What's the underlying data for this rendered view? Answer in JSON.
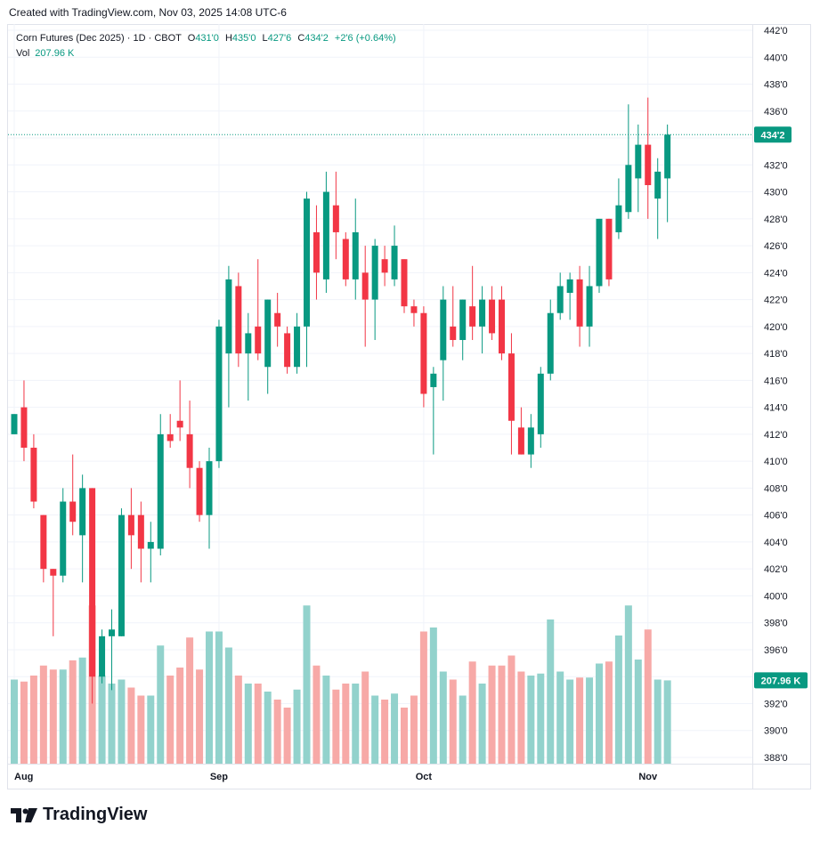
{
  "header": {
    "created_text": "Created with TradingView.com, Nov 03, 2025 14:08 UTC-6"
  },
  "legend": {
    "symbol": "Corn Futures (Dec 2025)",
    "interval": "1D",
    "exchange": "CBOT",
    "dot": "·",
    "open_label": "O",
    "open": "431'0",
    "high_label": "H",
    "high": "435'0",
    "low_label": "L",
    "low": "427'6",
    "close_label": "C",
    "close": "434'2",
    "change": "+2'6 (+0.64%)",
    "vol_label": "Vol",
    "vol_value": "207.96 K"
  },
  "price_badge": "434'2",
  "volume_badge": "207.96 K",
  "brand": "TradingView",
  "colors": {
    "up": "#089981",
    "down": "#f23645",
    "up_volume": "#92d2cc",
    "down_volume": "#f7a9a7",
    "grid": "#f0f3fa"
  },
  "chart_data": {
    "type": "candlestick",
    "title": "Corn Futures (Dec 2025) · 1D · CBOT",
    "price_unit": "cents per bushel (quarter-cent fraction notation)",
    "ylim": [
      387.5,
      442.5
    ],
    "y_ticks": [
      "388'0",
      "390'0",
      "392'0",
      "394'0",
      "396'0",
      "398'0",
      "400'0",
      "402'0",
      "404'0",
      "406'0",
      "408'0",
      "410'0",
      "412'0",
      "414'0",
      "416'0",
      "418'0",
      "420'0",
      "422'0",
      "424'0",
      "426'0",
      "428'0",
      "430'0",
      "432'0",
      "434'0",
      "436'0",
      "438'0",
      "440'0",
      "442'0"
    ],
    "y_tick_values": [
      388,
      390,
      392,
      394,
      396,
      398,
      400,
      402,
      404,
      406,
      408,
      410,
      412,
      414,
      416,
      418,
      420,
      422,
      424,
      426,
      428,
      430,
      432,
      434,
      436,
      438,
      440,
      442
    ],
    "x_labels": [
      {
        "label": "Aug",
        "index": 0
      },
      {
        "label": "Sep",
        "index": 21
      },
      {
        "label": "Oct",
        "index": 42
      },
      {
        "label": "Nov",
        "index": 65
      }
    ],
    "last_price": 434.25,
    "volume_max_k": 400,
    "candles": [
      {
        "o": 412.0,
        "h": 413.5,
        "l": 412.0,
        "c": 413.5,
        "v": 210
      },
      {
        "o": 414.0,
        "h": 416.0,
        "l": 410.0,
        "c": 411.0,
        "v": 205
      },
      {
        "o": 411.0,
        "h": 412.0,
        "l": 406.5,
        "c": 407.0,
        "v": 220
      },
      {
        "o": 406.0,
        "h": 406.0,
        "l": 401.0,
        "c": 402.0,
        "v": 245
      },
      {
        "o": 402.0,
        "h": 402.0,
        "l": 397.0,
        "c": 401.5,
        "v": 235
      },
      {
        "o": 401.5,
        "h": 408.0,
        "l": 401.0,
        "c": 407.0,
        "v": 235
      },
      {
        "o": 407.0,
        "h": 410.5,
        "l": 404.5,
        "c": 405.5,
        "v": 258
      },
      {
        "o": 404.5,
        "h": 409.0,
        "l": 401.0,
        "c": 408.0,
        "v": 265
      },
      {
        "o": 408.0,
        "h": 408.0,
        "l": 392.0,
        "c": 394.0,
        "v": 395
      },
      {
        "o": 394.0,
        "h": 397.5,
        "l": 393.5,
        "c": 397.0,
        "v": 220
      },
      {
        "o": 397.0,
        "h": 399.0,
        "l": 393.0,
        "c": 397.5,
        "v": 200
      },
      {
        "o": 397.0,
        "h": 406.5,
        "l": 397.0,
        "c": 406.0,
        "v": 210
      },
      {
        "o": 406.0,
        "h": 408.0,
        "l": 402.0,
        "c": 404.5,
        "v": 190
      },
      {
        "o": 406.0,
        "h": 407.0,
        "l": 401.0,
        "c": 403.5,
        "v": 170
      },
      {
        "o": 403.5,
        "h": 405.5,
        "l": 401.0,
        "c": 404.0,
        "v": 170
      },
      {
        "o": 403.5,
        "h": 413.5,
        "l": 403.0,
        "c": 412.0,
        "v": 295
      },
      {
        "o": 412.0,
        "h": 413.5,
        "l": 411.0,
        "c": 411.5,
        "v": 220
      },
      {
        "o": 413.0,
        "h": 416.0,
        "l": 411.5,
        "c": 412.5,
        "v": 240
      },
      {
        "o": 412.0,
        "h": 414.5,
        "l": 408.0,
        "c": 409.5,
        "v": 315
      },
      {
        "o": 409.5,
        "h": 410.0,
        "l": 405.5,
        "c": 406.0,
        "v": 235
      },
      {
        "o": 406.0,
        "h": 411.0,
        "l": 403.5,
        "c": 410.0,
        "v": 330
      },
      {
        "o": 410.0,
        "h": 420.5,
        "l": 409.5,
        "c": 420.0,
        "v": 330
      },
      {
        "o": 418.0,
        "h": 424.5,
        "l": 414.0,
        "c": 423.5,
        "v": 290
      },
      {
        "o": 423.0,
        "h": 424.0,
        "l": 417.0,
        "c": 418.0,
        "v": 220
      },
      {
        "o": 418.0,
        "h": 421.0,
        "l": 414.5,
        "c": 419.5,
        "v": 200
      },
      {
        "o": 420.0,
        "h": 425.0,
        "l": 417.5,
        "c": 418.0,
        "v": 200
      },
      {
        "o": 417.0,
        "h": 422.0,
        "l": 415.0,
        "c": 422.0,
        "v": 180
      },
      {
        "o": 421.0,
        "h": 422.5,
        "l": 418.5,
        "c": 420.0,
        "v": 160
      },
      {
        "o": 419.5,
        "h": 420.0,
        "l": 416.5,
        "c": 417.0,
        "v": 140
      },
      {
        "o": 417.0,
        "h": 421.0,
        "l": 416.5,
        "c": 420.0,
        "v": 185
      },
      {
        "o": 420.0,
        "h": 430.0,
        "l": 417.0,
        "c": 429.5,
        "v": 395
      },
      {
        "o": 427.0,
        "h": 429.0,
        "l": 422.0,
        "c": 424.0,
        "v": 245
      },
      {
        "o": 423.5,
        "h": 431.5,
        "l": 422.5,
        "c": 430.0,
        "v": 220
      },
      {
        "o": 429.0,
        "h": 431.5,
        "l": 425.0,
        "c": 427.0,
        "v": 185
      },
      {
        "o": 426.5,
        "h": 427.0,
        "l": 423.0,
        "c": 423.5,
        "v": 200
      },
      {
        "o": 423.5,
        "h": 429.5,
        "l": 422.0,
        "c": 427.0,
        "v": 200
      },
      {
        "o": 424.0,
        "h": 426.0,
        "l": 418.5,
        "c": 422.0,
        "v": 230
      },
      {
        "o": 422.0,
        "h": 426.5,
        "l": 419.0,
        "c": 426.0,
        "v": 170
      },
      {
        "o": 425.0,
        "h": 426.0,
        "l": 423.0,
        "c": 424.0,
        "v": 160
      },
      {
        "o": 423.5,
        "h": 427.5,
        "l": 423.0,
        "c": 426.0,
        "v": 175
      },
      {
        "o": 425.0,
        "h": 425.0,
        "l": 421.0,
        "c": 421.5,
        "v": 140
      },
      {
        "o": 421.5,
        "h": 422.0,
        "l": 420.0,
        "c": 421.0,
        "v": 170
      },
      {
        "o": 421.0,
        "h": 421.5,
        "l": 414.0,
        "c": 415.0,
        "v": 330
      },
      {
        "o": 415.5,
        "h": 417.0,
        "l": 410.5,
        "c": 416.5,
        "v": 340
      },
      {
        "o": 417.5,
        "h": 423.0,
        "l": 414.5,
        "c": 422.0,
        "v": 230
      },
      {
        "o": 420.0,
        "h": 423.0,
        "l": 418.5,
        "c": 419.0,
        "v": 210
      },
      {
        "o": 419.0,
        "h": 422.0,
        "l": 417.5,
        "c": 422.0,
        "v": 170
      },
      {
        "o": 421.5,
        "h": 424.5,
        "l": 419.0,
        "c": 420.0,
        "v": 255
      },
      {
        "o": 420.0,
        "h": 423.0,
        "l": 418.0,
        "c": 422.0,
        "v": 200
      },
      {
        "o": 422.0,
        "h": 423.0,
        "l": 419.0,
        "c": 419.5,
        "v": 245
      },
      {
        "o": 422.0,
        "h": 423.0,
        "l": 417.5,
        "c": 418.0,
        "v": 245
      },
      {
        "o": 418.0,
        "h": 419.5,
        "l": 410.5,
        "c": 413.0,
        "v": 270
      },
      {
        "o": 412.5,
        "h": 414.0,
        "l": 410.5,
        "c": 410.5,
        "v": 230
      },
      {
        "o": 410.5,
        "h": 413.5,
        "l": 409.5,
        "c": 412.5,
        "v": 220
      },
      {
        "o": 412.0,
        "h": 417.0,
        "l": 411.0,
        "c": 416.5,
        "v": 225
      },
      {
        "o": 416.5,
        "h": 422.0,
        "l": 416.0,
        "c": 421.0,
        "v": 360
      },
      {
        "o": 421.0,
        "h": 424.0,
        "l": 420.5,
        "c": 423.0,
        "v": 230
      },
      {
        "o": 422.5,
        "h": 424.0,
        "l": 420.5,
        "c": 423.5,
        "v": 210
      },
      {
        "o": 423.5,
        "h": 424.5,
        "l": 418.5,
        "c": 420.0,
        "v": 215
      },
      {
        "o": 420.0,
        "h": 424.5,
        "l": 418.5,
        "c": 423.0,
        "v": 215
      },
      {
        "o": 423.0,
        "h": 428.0,
        "l": 422.5,
        "c": 428.0,
        "v": 250
      },
      {
        "o": 428.0,
        "h": 428.0,
        "l": 423.0,
        "c": 423.5,
        "v": 255
      },
      {
        "o": 427.0,
        "h": 431.0,
        "l": 426.5,
        "c": 429.0,
        "v": 320
      },
      {
        "o": 428.5,
        "h": 436.5,
        "l": 428.0,
        "c": 432.0,
        "v": 395
      },
      {
        "o": 431.0,
        "h": 435.0,
        "l": 428.5,
        "c": 433.5,
        "v": 260
      },
      {
        "o": 433.5,
        "h": 437.0,
        "l": 428.0,
        "c": 430.5,
        "v": 335
      },
      {
        "o": 429.5,
        "h": 432.5,
        "l": 426.5,
        "c": 431.5,
        "v": 210
      },
      {
        "o": 431.0,
        "h": 435.0,
        "l": 427.75,
        "c": 434.25,
        "v": 207.96
      }
    ]
  }
}
